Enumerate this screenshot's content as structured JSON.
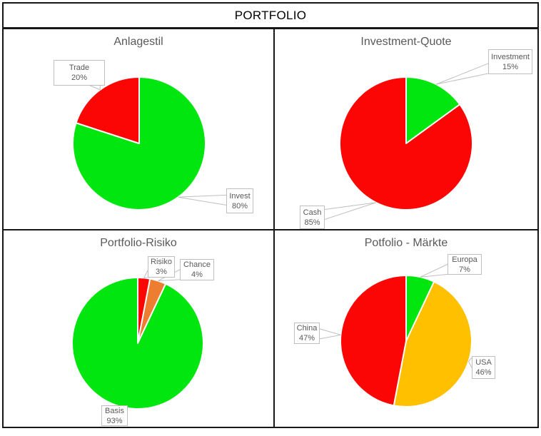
{
  "window": {
    "title": "PORTFOLIO"
  },
  "styles": {
    "green": "#00E60E",
    "red": "#FB0505",
    "orange": "#ED7D31",
    "gold": "#FFC000",
    "slice_border": "#FFFFFF",
    "leader_line": "#BFBFBF",
    "callout_border": "#BFBFBF",
    "callout_bg": "#FFFFFF",
    "label_text": "#595959",
    "frame_border": "#161616"
  },
  "chart_data": [
    {
      "type": "pie",
      "title": "Anlagestil",
      "legend_position": "none",
      "labels_style": "callout",
      "slices": [
        {
          "label": "Invest",
          "value": 80,
          "value_text": "80%",
          "color": "#00E60E"
        },
        {
          "label": "Trade",
          "value": 20,
          "value_text": "20%",
          "color": "#FB0505"
        }
      ]
    },
    {
      "type": "pie",
      "title": "Investment-Quote",
      "legend_position": "none",
      "labels_style": "callout",
      "slices": [
        {
          "label": "Investment",
          "value": 15,
          "value_text": "15%",
          "color": "#00E60E"
        },
        {
          "label": "Cash",
          "value": 85,
          "value_text": "85%",
          "color": "#FB0505"
        }
      ]
    },
    {
      "type": "pie",
      "title": "Portfolio-Risiko",
      "legend_position": "none",
      "labels_style": "callout",
      "slices": [
        {
          "label": "Risiko",
          "value": 3,
          "value_text": "3%",
          "color": "#FB0505"
        },
        {
          "label": "Chance",
          "value": 4,
          "value_text": "4%",
          "color": "#ED7D31"
        },
        {
          "label": "Basis",
          "value": 93,
          "value_text": "93%",
          "color": "#00E60E"
        }
      ]
    },
    {
      "type": "pie",
      "title": "Potfolio - Märkte",
      "legend_position": "none",
      "labels_style": "callout",
      "slices": [
        {
          "label": "Europa",
          "value": 7,
          "value_text": "7%",
          "color": "#00E60E"
        },
        {
          "label": "USA",
          "value": 46,
          "value_text": "46%",
          "color": "#FFC000"
        },
        {
          "label": "China",
          "value": 47,
          "value_text": "47%",
          "color": "#FB0505"
        }
      ]
    }
  ]
}
